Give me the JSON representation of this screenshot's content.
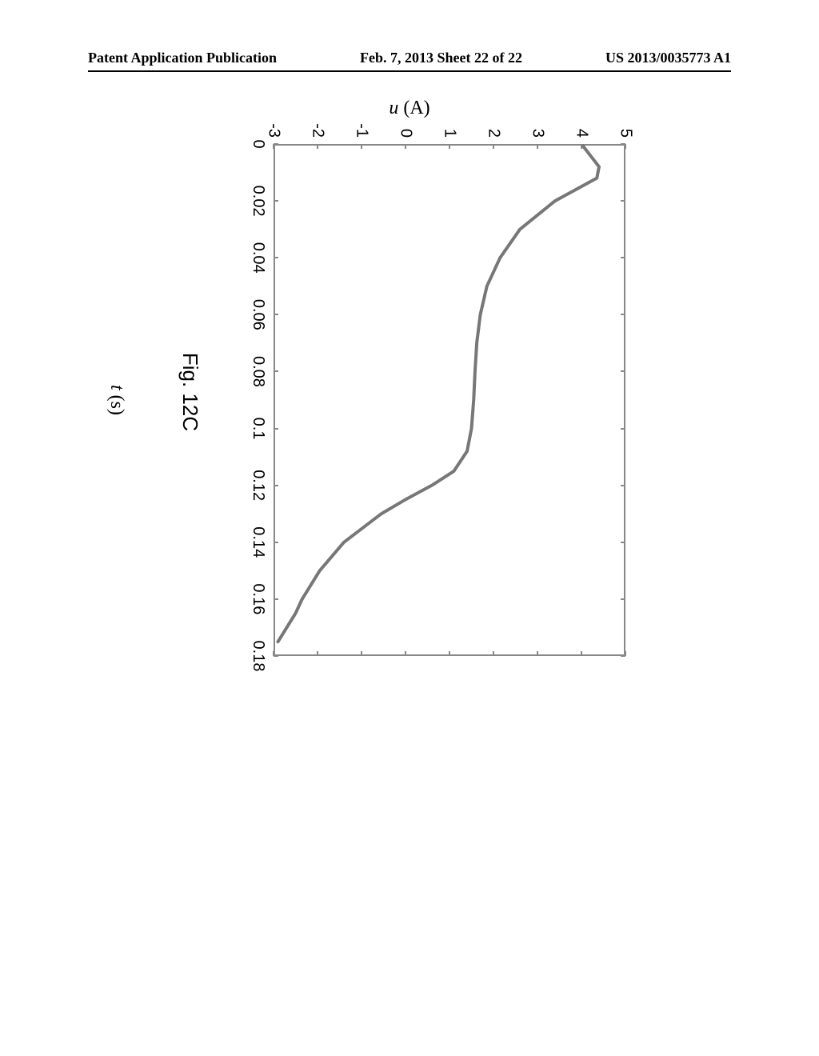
{
  "header": {
    "left": "Patent Application Publication",
    "center": "Feb. 7, 2013  Sheet 22 of 22",
    "right": "US 2013/0035773 A1"
  },
  "chart": {
    "type": "line",
    "xlabel": "t (s)",
    "ylabel": "u (A)",
    "xlim": [
      0,
      0.18
    ],
    "ylim": [
      -3,
      5
    ],
    "xtick_labels": [
      "0",
      "0.02",
      "0.04",
      "0.06",
      "0.08",
      "0.1",
      "0.12",
      "0.14",
      "0.16",
      "0.18"
    ],
    "xtick_values": [
      0,
      0.02,
      0.04,
      0.06,
      0.08,
      0.1,
      0.12,
      0.14,
      0.16,
      0.18
    ],
    "ytick_labels": [
      "-3",
      "-2",
      "-1",
      "0",
      "1",
      "2",
      "3",
      "4",
      "5"
    ],
    "ytick_values": [
      -3,
      -2,
      -1,
      0,
      1,
      2,
      3,
      4,
      5
    ],
    "series_color": "#777777",
    "line_width": 4,
    "background_color": "#ffffff",
    "border_color": "#888888",
    "tick_fontsize": 20,
    "label_fontsize": 24,
    "data_points": [
      {
        "x": 0.0,
        "y": 4.0
      },
      {
        "x": 0.008,
        "y": 4.4
      },
      {
        "x": 0.012,
        "y": 4.35
      },
      {
        "x": 0.02,
        "y": 3.4
      },
      {
        "x": 0.03,
        "y": 2.6
      },
      {
        "x": 0.04,
        "y": 2.15
      },
      {
        "x": 0.05,
        "y": 1.85
      },
      {
        "x": 0.06,
        "y": 1.7
      },
      {
        "x": 0.07,
        "y": 1.62
      },
      {
        "x": 0.08,
        "y": 1.58
      },
      {
        "x": 0.09,
        "y": 1.55
      },
      {
        "x": 0.1,
        "y": 1.5
      },
      {
        "x": 0.108,
        "y": 1.4
      },
      {
        "x": 0.115,
        "y": 1.1
      },
      {
        "x": 0.12,
        "y": 0.6
      },
      {
        "x": 0.125,
        "y": 0.0
      },
      {
        "x": 0.13,
        "y": -0.55
      },
      {
        "x": 0.14,
        "y": -1.4
      },
      {
        "x": 0.15,
        "y": -1.95
      },
      {
        "x": 0.16,
        "y": -2.35
      },
      {
        "x": 0.165,
        "y": -2.5
      },
      {
        "x": 0.175,
        "y": -2.9
      }
    ]
  },
  "caption": "Fig. 12C"
}
